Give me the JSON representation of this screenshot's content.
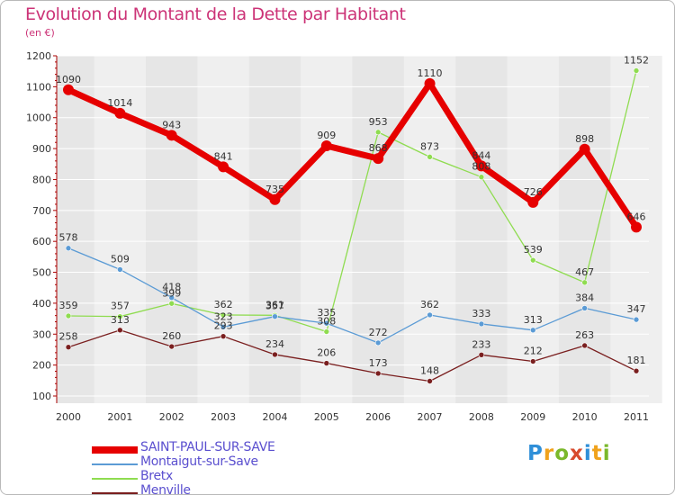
{
  "title": "Evolution du Montant de la Dette par Habitant",
  "subtitle": "(en €)",
  "logo": {
    "text": "Proxiti",
    "colors": [
      "#2f8fd8",
      "#f0a21c",
      "#7ab82b",
      "#d84a2c",
      "#2f8fd8",
      "#f0a21c",
      "#7ab82b"
    ]
  },
  "colors": {
    "title": "#cc3377",
    "legend_text": "#5a4fcf",
    "axis": "#aa0000",
    "grid": "#ffffff",
    "background": "#ffffff"
  },
  "chart_data": {
    "type": "line",
    "x": [
      "2000",
      "2001",
      "2002",
      "2003",
      "2004",
      "2005",
      "2006",
      "2007",
      "2008",
      "2009",
      "2010",
      "2011"
    ],
    "ylim": [
      100,
      1200
    ],
    "yticks": [
      100,
      200,
      300,
      400,
      500,
      600,
      700,
      800,
      900,
      1000,
      1100,
      1200
    ],
    "xlabel": "",
    "ylabel": "",
    "legend_position": "bottom-left",
    "series": [
      {
        "name": "SAINT-PAUL-SUR-SAVE",
        "color": "#e60000",
        "values": [
          1090,
          1014,
          943,
          841,
          735,
          909,
          868,
          1110,
          844,
          726,
          898,
          646
        ]
      },
      {
        "name": "Montaigut-sur-Save",
        "color": "#5b9bd5",
        "values": [
          578,
          509,
          418,
          323,
          357,
          335,
          272,
          362,
          333,
          313,
          384,
          347
        ]
      },
      {
        "name": "Bretx",
        "color": "#8fdc50",
        "values": [
          359,
          357,
          399,
          362,
          361,
          308,
          953,
          873,
          808,
          539,
          467,
          1152
        ]
      },
      {
        "name": "Menville",
        "color": "#7a1f1f",
        "values": [
          258,
          313,
          260,
          293,
          234,
          206,
          173,
          148,
          233,
          212,
          263,
          181
        ]
      }
    ]
  }
}
